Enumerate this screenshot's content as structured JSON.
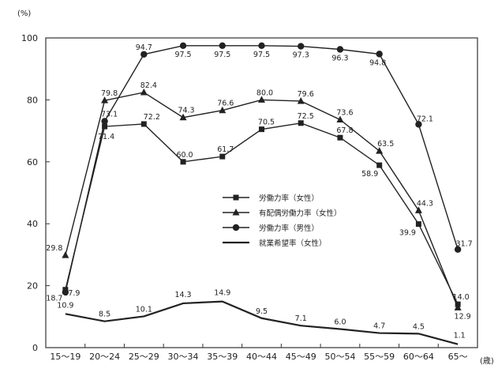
{
  "chart_data": {
    "type": "line",
    "title": "",
    "y_unit": "(%)",
    "x_unit": "(歳)",
    "ylim": [
      0,
      100
    ],
    "yticks": [
      0,
      20,
      40,
      60,
      80,
      100
    ],
    "grid": false,
    "legend_position": "center-right",
    "categories": [
      "15～19",
      "20～24",
      "25～29",
      "30～34",
      "35～39",
      "40～44",
      "45～49",
      "50～54",
      "55～59",
      "60～64",
      "65～"
    ],
    "series": [
      {
        "name": "労働力率（女性）",
        "marker": "square",
        "values": [
          18.7,
          71.4,
          72.2,
          60.0,
          61.7,
          70.5,
          72.5,
          67.8,
          58.9,
          39.9,
          14.0
        ],
        "labels": [
          "18.7",
          "71.4",
          "72.2",
          "60.0",
          "61.7",
          "70.5",
          "72.5",
          "67.8",
          "58.9",
          "39.9",
          "14.0"
        ]
      },
      {
        "name": "有配偶労働力率（女性）",
        "marker": "triangle",
        "values": [
          29.8,
          79.8,
          82.4,
          74.3,
          76.6,
          80.0,
          79.6,
          73.6,
          63.5,
          44.3,
          12.9
        ],
        "labels": [
          "29.8",
          "79.8",
          "82.4",
          "74.3",
          "76.6",
          "80.0",
          "79.6",
          "73.6",
          "63.5",
          "44.3",
          "12.9"
        ]
      },
      {
        "name": "労働力率（男性）",
        "marker": "diamond",
        "values": [
          17.9,
          73.1,
          94.7,
          97.5,
          97.5,
          97.5,
          97.3,
          96.3,
          94.8,
          72.1,
          31.7
        ],
        "labels": [
          "17.9",
          "73.1",
          "94.7",
          "97.5",
          "97.5",
          "97.5",
          "97.3",
          "96.3",
          "94.8",
          "72.1",
          "31.7"
        ]
      },
      {
        "name": "就業希望率（女性）",
        "marker": "none",
        "values": [
          10.9,
          8.5,
          10.1,
          14.3,
          14.9,
          9.5,
          7.1,
          6.0,
          4.7,
          4.5,
          1.1
        ],
        "labels": [
          "10.9",
          "8.5",
          "10.1",
          "14.3",
          "14.9",
          "9.5",
          "7.1",
          "6.0",
          "4.7",
          "4.5",
          "1.1"
        ]
      }
    ]
  }
}
